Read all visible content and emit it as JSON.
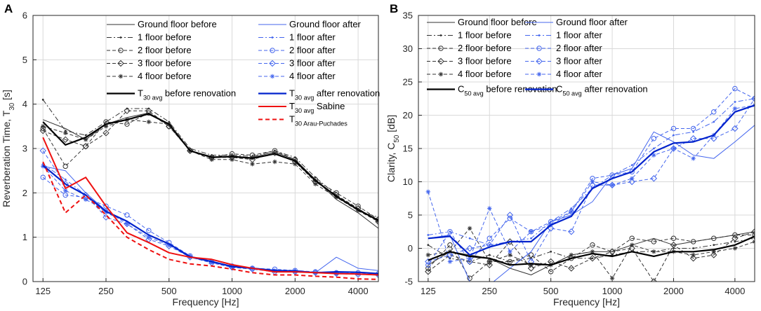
{
  "chart_data": [
    {
      "type": "line",
      "panel_label": "A",
      "xlabel": "Frequency [Hz]",
      "ylabel": "Reverberation Time, T",
      "ylabel_sub": "30",
      "ylabel_suffix": " [s]",
      "xscale": "log2",
      "xlim": [
        112,
        5000
      ],
      "ylim": [
        0,
        6
      ],
      "xticks": [
        125,
        250,
        500,
        1000,
        2000,
        4000
      ],
      "yticks": [
        0,
        1,
        2,
        3,
        4,
        5,
        6
      ],
      "grid": true,
      "legend_position": "top",
      "x": [
        125,
        160,
        200,
        250,
        315,
        400,
        500,
        630,
        800,
        1000,
        1250,
        1600,
        2000,
        2500,
        3150,
        4000,
        5000
      ],
      "series": [
        {
          "name": "Ground floor before",
          "color": "#333333",
          "width": 1,
          "dash": "",
          "marker": "",
          "values": [
            3.65,
            3.45,
            3.2,
            3.55,
            3.7,
            3.8,
            3.55,
            2.95,
            2.82,
            2.8,
            2.8,
            2.92,
            2.75,
            2.3,
            1.85,
            1.55,
            1.2
          ]
        },
        {
          "name": "1 floor before",
          "color": "#333333",
          "width": 1,
          "dash": "7 3 2 3",
          "marker": "dot",
          "values": [
            4.1,
            3.4,
            3.3,
            3.6,
            3.9,
            3.9,
            3.6,
            3.0,
            2.85,
            2.85,
            2.82,
            2.95,
            2.8,
            2.35,
            1.95,
            1.6,
            1.45
          ]
        },
        {
          "name": "2 floor before",
          "color": "#333333",
          "width": 1,
          "dash": "5 3",
          "marker": "circle",
          "values": [
            3.45,
            2.6,
            3.05,
            3.6,
            3.55,
            3.8,
            3.5,
            2.95,
            2.8,
            2.88,
            2.85,
            2.95,
            2.75,
            2.3,
            2.0,
            1.7,
            1.4
          ]
        },
        {
          "name": "3 floor before",
          "color": "#333333",
          "width": 1,
          "dash": "5 3",
          "marker": "diamond",
          "values": [
            3.4,
            3.2,
            3.05,
            3.35,
            3.85,
            3.85,
            3.5,
            2.95,
            2.8,
            2.8,
            2.75,
            2.9,
            2.7,
            2.25,
            1.95,
            1.65,
            1.35
          ]
        },
        {
          "name": "4 floor before",
          "color": "#333333",
          "width": 1,
          "dash": "5 3",
          "marker": "star",
          "values": [
            3.5,
            3.35,
            3.2,
            3.5,
            3.65,
            3.6,
            3.55,
            2.95,
            2.75,
            2.75,
            2.65,
            2.7,
            2.65,
            2.2,
            1.9,
            1.6,
            1.35
          ]
        },
        {
          "name": "Ground floor after",
          "color": "#4466ee",
          "width": 1,
          "dash": "",
          "marker": "",
          "values": [
            2.6,
            2.5,
            2.0,
            1.6,
            1.35,
            1.05,
            0.85,
            0.55,
            0.45,
            0.35,
            0.3,
            0.25,
            0.25,
            0.2,
            0.55,
            0.3,
            0.25
          ]
        },
        {
          "name": "1 floor after",
          "color": "#4466ee",
          "width": 1,
          "dash": "7 3 2 3",
          "marker": "dot",
          "values": [
            2.65,
            2.3,
            1.95,
            1.55,
            1.35,
            1.05,
            0.85,
            0.55,
            0.45,
            0.35,
            0.3,
            0.25,
            0.25,
            0.2,
            0.2,
            0.2,
            0.18
          ]
        },
        {
          "name": "2 floor after",
          "color": "#4466ee",
          "width": 1,
          "dash": "5 3",
          "marker": "circle",
          "values": [
            2.35,
            1.95,
            1.9,
            1.7,
            1.5,
            1.15,
            0.88,
            0.58,
            0.45,
            0.35,
            0.3,
            0.28,
            0.25,
            0.22,
            0.2,
            0.2,
            0.18
          ]
        },
        {
          "name": "3 floor after",
          "color": "#4466ee",
          "width": 1,
          "dash": "5 3",
          "marker": "diamond",
          "values": [
            2.95,
            2.2,
            1.95,
            1.45,
            1.3,
            0.95,
            0.8,
            0.55,
            0.42,
            0.32,
            0.28,
            0.22,
            0.22,
            0.2,
            0.18,
            0.16,
            0.15
          ]
        },
        {
          "name": "4 floor after",
          "color": "#4466ee",
          "width": 1,
          "dash": "5 3",
          "marker": "star",
          "values": [
            2.6,
            2.05,
            1.85,
            1.6,
            1.3,
            1.0,
            0.82,
            0.55,
            0.45,
            0.33,
            0.3,
            0.24,
            0.22,
            0.2,
            0.18,
            0.18,
            0.16
          ]
        },
        {
          "name": "T30 avg before renovation",
          "legend_main": "T",
          "legend_sub": "30 avg",
          "legend_suffix": " before renovation",
          "color": "#000000",
          "width": 2.2,
          "dash": "",
          "marker": "",
          "values": [
            3.6,
            3.08,
            3.25,
            3.55,
            3.65,
            3.78,
            3.55,
            2.95,
            2.8,
            2.82,
            2.78,
            2.88,
            2.72,
            2.28,
            1.92,
            1.62,
            1.38
          ]
        },
        {
          "name": "T30 avg after renovation",
          "legend_main": "T",
          "legend_sub": "30 avg",
          "legend_suffix": " after renovation",
          "color": "#0022cc",
          "width": 2.2,
          "dash": "",
          "marker": "",
          "values": [
            2.62,
            2.2,
            1.95,
            1.58,
            1.36,
            1.05,
            0.85,
            0.56,
            0.45,
            0.34,
            0.3,
            0.25,
            0.24,
            0.2,
            0.22,
            0.21,
            0.18
          ]
        },
        {
          "name": "T30 avg Sabine",
          "legend_main": "T",
          "legend_sub": "30 avg",
          "legend_suffix": " Sabine",
          "color": "#ee1111",
          "width": 2,
          "dash": "",
          "marker": "",
          "values": [
            3.25,
            2.1,
            2.35,
            1.7,
            1.1,
            0.88,
            0.65,
            0.55,
            0.5,
            0.38,
            0.3,
            0.22,
            0.22,
            0.2,
            0.18,
            0.17,
            0.15
          ]
        },
        {
          "name": "T30 Arau-Puchades",
          "legend_main": "T",
          "legend_sub": "30 Arau-Puchades",
          "legend_suffix": "",
          "color": "#ee1111",
          "width": 2,
          "dash": "6 4",
          "marker": "",
          "values": [
            2.7,
            1.55,
            1.95,
            1.5,
            1.0,
            0.72,
            0.5,
            0.4,
            0.35,
            0.28,
            0.2,
            0.15,
            0.15,
            0.12,
            0.1,
            0.06,
            0.05
          ]
        }
      ]
    },
    {
      "type": "line",
      "panel_label": "B",
      "xlabel": "Frequency [Hz]",
      "ylabel": "Clarity, C",
      "ylabel_sub": "50",
      "ylabel_suffix": " [dB]",
      "xscale": "log2",
      "xlim": [
        112,
        5000
      ],
      "ylim": [
        -5,
        35
      ],
      "xticks": [
        125,
        250,
        500,
        1000,
        2000,
        4000
      ],
      "yticks": [
        -5,
        0,
        5,
        10,
        15,
        20,
        25,
        30,
        35
      ],
      "grid": true,
      "legend_position": "top",
      "x": [
        125,
        160,
        200,
        250,
        315,
        400,
        500,
        630,
        800,
        1000,
        1250,
        1600,
        2000,
        2500,
        3150,
        4000,
        5000
      ],
      "series": [
        {
          "name": "Ground floor before",
          "color": "#333333",
          "width": 1,
          "dash": "",
          "marker": "",
          "values": [
            -2.5,
            -0.5,
            -1.0,
            -1.5,
            -3.0,
            -4.0,
            -2.5,
            -1.0,
            -0.5,
            -0.5,
            0.5,
            1.5,
            0.5,
            1.0,
            1.5,
            2.0,
            2.5
          ]
        },
        {
          "name": "1 floor before",
          "color": "#333333",
          "width": 1,
          "dash": "7 3 2 3",
          "marker": "dot",
          "values": [
            0.5,
            -1.5,
            -2.0,
            -1.0,
            -2.0,
            -1.5,
            -0.5,
            -1.5,
            -1.5,
            -1.0,
            -0.5,
            -0.5,
            0.0,
            0.0,
            0.5,
            1.0,
            1.5
          ]
        },
        {
          "name": "2 floor before",
          "color": "#333333",
          "width": 1,
          "dash": "5 3",
          "marker": "circle",
          "values": [
            -3.0,
            0.5,
            -4.5,
            -2.0,
            -2.0,
            -1.0,
            -3.5,
            -1.5,
            0.5,
            -0.5,
            1.5,
            1.0,
            1.5,
            1.0,
            1.5,
            2.0,
            2.0
          ]
        },
        {
          "name": "3 floor before",
          "color": "#333333",
          "width": 1,
          "dash": "5 3",
          "marker": "diamond",
          "values": [
            -3.5,
            -1.0,
            -2.0,
            -2.5,
            1.0,
            -3.0,
            -2.0,
            -3.0,
            -1.5,
            -0.5,
            0.0,
            -5.0,
            0.5,
            -1.5,
            -1.0,
            1.5,
            2.5
          ]
        },
        {
          "name": "4 floor before",
          "color": "#333333",
          "width": 1,
          "dash": "5 3",
          "marker": "star",
          "values": [
            -1.0,
            -0.5,
            3.0,
            -2.0,
            -1.0,
            -2.5,
            -2.5,
            -1.0,
            -0.5,
            -4.5,
            0.5,
            -0.5,
            -0.5,
            -1.0,
            -0.5,
            0.0,
            1.0
          ]
        },
        {
          "name": "Ground floor after",
          "color": "#4466ee",
          "width": 1,
          "dash": "",
          "marker": "",
          "values": [
            1.5,
            2.0,
            -5.0,
            -5.5,
            -3.0,
            -0.5,
            4.0,
            5.0,
            7.0,
            11.0,
            12.0,
            17.5,
            16.0,
            14.0,
            13.5,
            16.0,
            18.5
          ]
        },
        {
          "name": "1 floor after",
          "color": "#4466ee",
          "width": 1,
          "dash": "7 3 2 3",
          "marker": "dot",
          "values": [
            2.0,
            2.5,
            1.5,
            0.5,
            1.0,
            1.5,
            4.0,
            6.0,
            9.0,
            11.0,
            12.5,
            15.0,
            17.0,
            17.5,
            19.0,
            22.0,
            22.5
          ]
        },
        {
          "name": "2 floor after",
          "color": "#4466ee",
          "width": 1,
          "dash": "5 3",
          "marker": "circle",
          "values": [
            -2.5,
            2.5,
            -2.0,
            1.5,
            4.5,
            2.5,
            4.0,
            5.5,
            10.5,
            11.0,
            11.5,
            16.5,
            18.0,
            18.0,
            20.5,
            24.0,
            22.5
          ]
        },
        {
          "name": "3 floor after",
          "color": "#4466ee",
          "width": 1,
          "dash": "5 3",
          "marker": "diamond",
          "values": [
            -2.0,
            -1.0,
            0.0,
            0.5,
            5.0,
            -2.0,
            3.0,
            2.5,
            9.5,
            9.5,
            10.0,
            10.5,
            15.0,
            16.5,
            16.5,
            18.0,
            22.5
          ]
        },
        {
          "name": "4 floor after",
          "color": "#4466ee",
          "width": 1,
          "dash": "5 3",
          "marker": "star",
          "values": [
            8.5,
            -2.0,
            -1.5,
            6.0,
            -0.5,
            2.5,
            3.5,
            5.5,
            10.0,
            9.5,
            10.5,
            14.0,
            15.0,
            13.5,
            17.0,
            21.0,
            21.5
          ]
        },
        {
          "name": "C50 avg before renovation",
          "legend_main": "C",
          "legend_sub": "50 avg",
          "legend_suffix": " before renovation",
          "color": "#000000",
          "width": 2.2,
          "dash": "",
          "marker": "",
          "values": [
            -1.8,
            -0.5,
            -1.2,
            -1.5,
            -2.5,
            -2.3,
            -2.5,
            -1.5,
            -0.8,
            -1.2,
            -0.5,
            -1.2,
            -0.5,
            -0.5,
            -0.2,
            0.5,
            1.8
          ]
        },
        {
          "name": "C50 avg after renovation",
          "legend_main": "C",
          "legend_sub": "50 avg",
          "legend_suffix": " after renovation",
          "color": "#0022cc",
          "width": 2.2,
          "dash": "",
          "marker": "",
          "values": [
            1.5,
            1.8,
            -1.0,
            0.2,
            1.0,
            1.0,
            3.5,
            4.8,
            9.0,
            10.5,
            11.5,
            14.5,
            15.8,
            16.0,
            17.0,
            20.5,
            21.5
          ]
        }
      ]
    }
  ]
}
